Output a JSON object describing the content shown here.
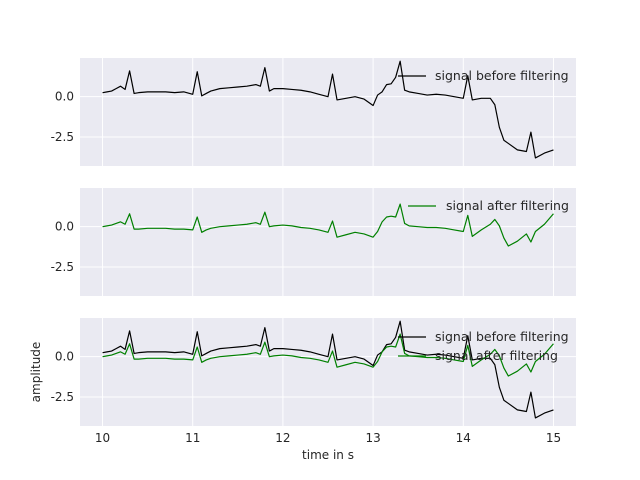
{
  "chart_data": {
    "type": "line",
    "xlabel": "time in s",
    "ylabel": "amplitude",
    "xlim": [
      9.75,
      15.25
    ],
    "ylim": [
      -4.3,
      2.4
    ],
    "x_ticks": [
      10,
      11,
      12,
      13,
      14,
      15
    ],
    "y_ticks": [
      0.0,
      -2.5
    ],
    "grid": true,
    "background": "#eaeaf2",
    "colors": {
      "before": "#000000",
      "after": "#008000"
    },
    "legend_labels": {
      "before": "signal before filtering",
      "after": "signal after filtering"
    },
    "legend_position": "upper right",
    "x": [
      10.0,
      10.05,
      10.1,
      10.15,
      10.2,
      10.25,
      10.3,
      10.35,
      10.4,
      10.5,
      10.6,
      10.7,
      10.8,
      10.9,
      11.0,
      11.05,
      11.1,
      11.15,
      11.2,
      11.3,
      11.4,
      11.5,
      11.6,
      11.7,
      11.75,
      11.8,
      11.85,
      11.9,
      12.0,
      12.1,
      12.2,
      12.3,
      12.4,
      12.5,
      12.55,
      12.6,
      12.7,
      12.8,
      12.9,
      13.0,
      13.05,
      13.1,
      13.15,
      13.2,
      13.25,
      13.3,
      13.35,
      13.4,
      13.5,
      13.6,
      13.7,
      13.8,
      13.9,
      14.0,
      14.05,
      14.1,
      14.2,
      14.3,
      14.35,
      14.4,
      14.45,
      14.5,
      14.6,
      14.7,
      14.75,
      14.8,
      14.9,
      15.0
    ],
    "series": [
      {
        "name": "signal before filtering",
        "values": [
          0.25,
          0.3,
          0.35,
          0.5,
          0.65,
          0.45,
          1.6,
          0.2,
          0.25,
          0.3,
          0.3,
          0.3,
          0.25,
          0.3,
          0.15,
          1.55,
          0.05,
          0.2,
          0.35,
          0.5,
          0.55,
          0.6,
          0.65,
          0.75,
          0.65,
          1.8,
          0.35,
          0.5,
          0.5,
          0.45,
          0.4,
          0.3,
          0.15,
          0.0,
          1.4,
          -0.2,
          -0.1,
          0.0,
          -0.15,
          -0.55,
          0.1,
          0.3,
          0.75,
          0.8,
          1.2,
          2.2,
          0.4,
          0.3,
          0.2,
          0.1,
          0.15,
          0.1,
          0.0,
          -0.1,
          1.3,
          -0.2,
          -0.1,
          -0.1,
          -0.5,
          -1.9,
          -2.7,
          -2.9,
          -3.3,
          -3.4,
          -2.2,
          -3.8,
          -3.5,
          -3.3
        ]
      },
      {
        "name": "signal after filtering",
        "values": [
          0.0,
          0.05,
          0.1,
          0.2,
          0.3,
          0.15,
          0.8,
          -0.15,
          -0.15,
          -0.1,
          -0.1,
          -0.1,
          -0.15,
          -0.15,
          -0.2,
          0.6,
          -0.35,
          -0.2,
          -0.1,
          0.0,
          0.05,
          0.1,
          0.15,
          0.25,
          0.15,
          0.9,
          0.0,
          0.05,
          0.1,
          0.05,
          -0.05,
          -0.1,
          -0.2,
          -0.35,
          0.35,
          -0.65,
          -0.5,
          -0.35,
          -0.45,
          -0.65,
          -0.3,
          0.3,
          0.6,
          0.65,
          0.6,
          1.4,
          0.2,
          0.05,
          0.0,
          -0.05,
          -0.05,
          -0.1,
          -0.2,
          -0.3,
          0.7,
          -0.6,
          -0.2,
          0.15,
          0.45,
          0.05,
          -0.7,
          -1.2,
          -0.9,
          -0.45,
          -0.95,
          -0.3,
          0.15,
          0.8
        ]
      }
    ]
  }
}
